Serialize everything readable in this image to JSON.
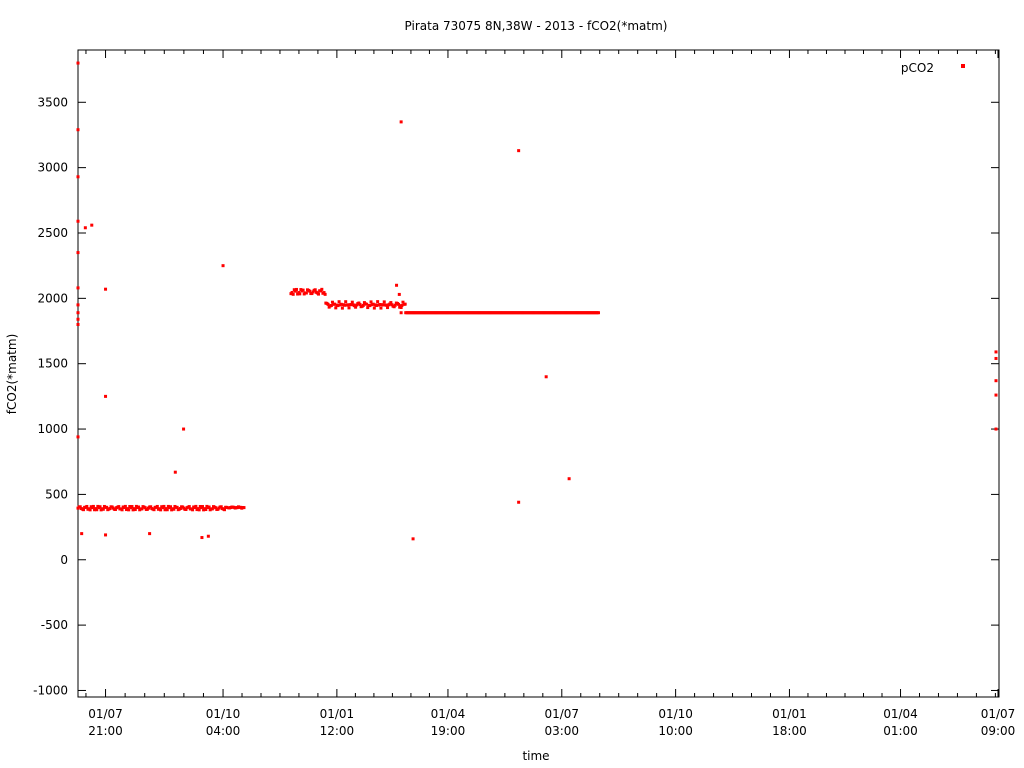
{
  "chart_data": {
    "type": "scatter",
    "title": "Pirata 73075 8N,38W - 2013 - fCO2(*matm)",
    "xlabel": "time",
    "ylabel": "fCO2(*matm)",
    "ylim": [
      -1050,
      3900
    ],
    "yticks": [
      -1000,
      -500,
      0,
      500,
      1000,
      1500,
      2000,
      2500,
      3000,
      3500
    ],
    "xticks": [
      {
        "date": "01/07",
        "time": "21:00",
        "t": 0.03
      },
      {
        "date": "01/10",
        "time": "04:00",
        "t": 0.158
      },
      {
        "date": "01/01",
        "time": "12:00",
        "t": 0.282
      },
      {
        "date": "01/04",
        "time": "19:00",
        "t": 0.403
      },
      {
        "date": "01/07",
        "time": "03:00",
        "t": 0.527
      },
      {
        "date": "01/10",
        "time": "10:00",
        "t": 0.651
      },
      {
        "date": "01/01",
        "time": "18:00",
        "t": 0.775
      },
      {
        "date": "01/04",
        "time": "01:00",
        "t": 0.896
      },
      {
        "date": "01/07",
        "time": "09:00",
        "t": 1.02
      }
    ],
    "grid": false,
    "legend_position": "top-right",
    "series": [
      {
        "name": "pCO2",
        "color": "#ff0000",
        "segments": [
          {
            "t0": 0.0,
            "t1": 0.163,
            "base": 395,
            "wave": 18
          },
          {
            "t1": 0.164,
            "base": 400,
            "wave": 6,
            "t0": 0.182
          },
          {
            "t0": 0.232,
            "t1": 0.27,
            "base": 2050,
            "wave": 25
          },
          {
            "t0": 0.27,
            "t1": 0.357,
            "base": 1950,
            "wave": 25
          },
          {
            "t0": 0.357,
            "t1": 0.568,
            "base": 1890,
            "wave": 0
          }
        ],
        "points": [
          [
            0.0,
            3800
          ],
          [
            0.0,
            3290
          ],
          [
            0.0,
            2930
          ],
          [
            0.0,
            2590
          ],
          [
            0.0,
            2350
          ],
          [
            0.0,
            2080
          ],
          [
            0.0,
            1950
          ],
          [
            0.0,
            1890
          ],
          [
            0.0,
            1840
          ],
          [
            0.0,
            1800
          ],
          [
            0.0,
            940
          ],
          [
            0.004,
            200
          ],
          [
            0.008,
            2540
          ],
          [
            0.015,
            2560
          ],
          [
            0.03,
            2070
          ],
          [
            0.03,
            1250
          ],
          [
            0.03,
            190
          ],
          [
            0.078,
            200
          ],
          [
            0.106,
            670
          ],
          [
            0.115,
            1000
          ],
          [
            0.135,
            170
          ],
          [
            0.142,
            180
          ],
          [
            0.158,
            2250
          ],
          [
            0.347,
            2100
          ],
          [
            0.35,
            2030
          ],
          [
            0.352,
            1930
          ],
          [
            0.352,
            1890
          ],
          [
            0.365,
            160
          ],
          [
            0.352,
            3350
          ],
          [
            0.48,
            3130
          ],
          [
            0.48,
            440
          ],
          [
            0.51,
            1400
          ],
          [
            0.535,
            620
          ],
          [
            1.0,
            1000
          ],
          [
            1.0,
            1260
          ],
          [
            1.0,
            1370
          ],
          [
            1.0,
            1540
          ],
          [
            1.0,
            1590
          ]
        ]
      }
    ]
  }
}
